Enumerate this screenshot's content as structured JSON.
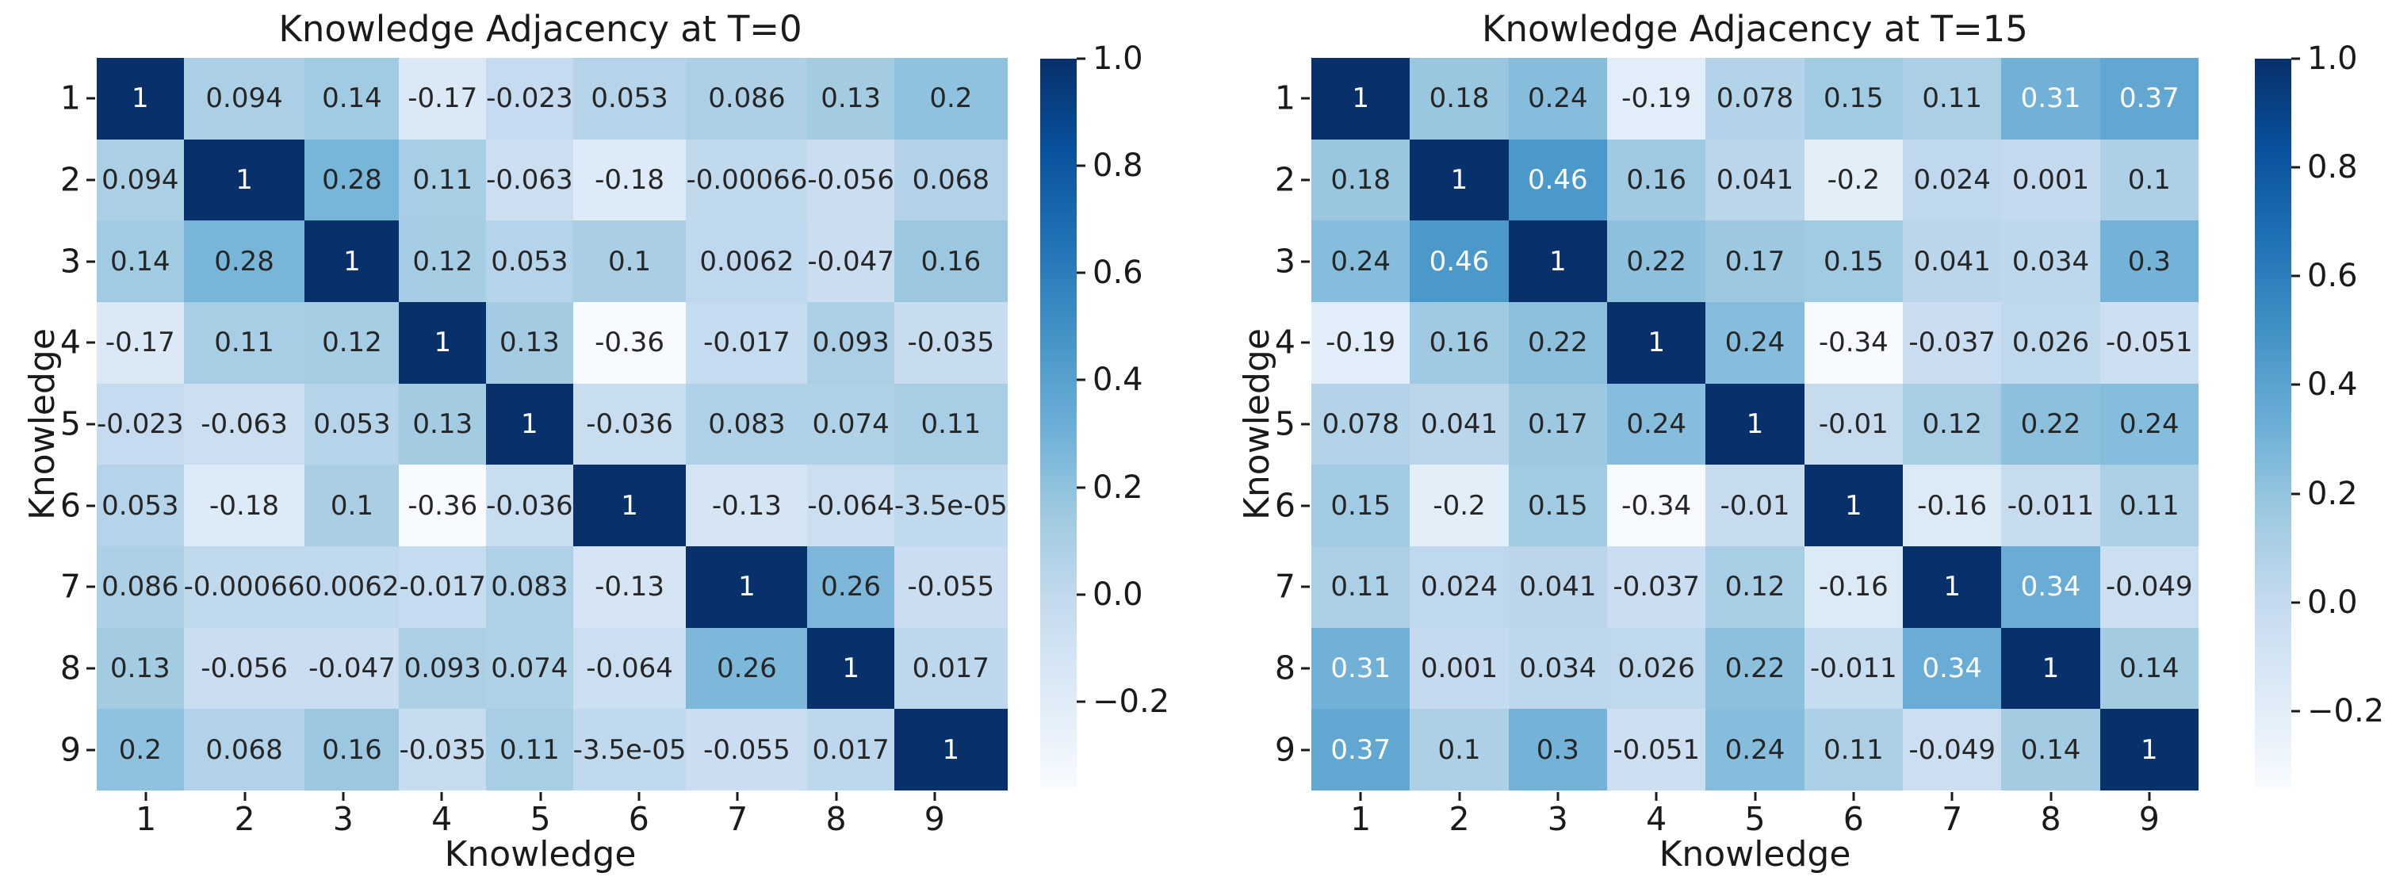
{
  "chart_data": [
    {
      "type": "heatmap",
      "title": "Knowledge Adjacency at T=0",
      "xlabel": "Knowledge",
      "ylabel": "Knowledge",
      "colormap": "Blues",
      "xticklabels": [
        "1",
        "2",
        "3",
        "4",
        "5",
        "6",
        "7",
        "8",
        "9"
      ],
      "yticklabels": [
        "1",
        "2",
        "3",
        "4",
        "5",
        "6",
        "7",
        "8",
        "9"
      ],
      "vmin": -0.36,
      "vmax": 1.0,
      "cells": [
        [
          "1",
          "0.094",
          "0.14",
          "-0.17",
          "-0.023",
          "0.053",
          "0.086",
          "0.13",
          "0.2"
        ],
        [
          "0.094",
          "1",
          "0.28",
          "0.11",
          "-0.063",
          "-0.18",
          "-0.00066",
          "-0.056",
          "0.068"
        ],
        [
          "0.14",
          "0.28",
          "1",
          "0.12",
          "0.053",
          "0.1",
          "0.0062",
          "-0.047",
          "0.16"
        ],
        [
          "-0.17",
          "0.11",
          "0.12",
          "1",
          "0.13",
          "-0.36",
          "-0.017",
          "0.093",
          "-0.035"
        ],
        [
          "-0.023",
          "-0.063",
          "0.053",
          "0.13",
          "1",
          "-0.036",
          "0.083",
          "0.074",
          "0.11"
        ],
        [
          "0.053",
          "-0.18",
          "0.1",
          "-0.36",
          "-0.036",
          "1",
          "-0.13",
          "-0.064",
          "-3.5e-05"
        ],
        [
          "0.086",
          "-0.00066",
          "0.0062",
          "-0.017",
          "0.083",
          "-0.13",
          "1",
          "0.26",
          "-0.055"
        ],
        [
          "0.13",
          "-0.056",
          "-0.047",
          "0.093",
          "0.074",
          "-0.064",
          "0.26",
          "1",
          "0.017"
        ],
        [
          "0.2",
          "0.068",
          "0.16",
          "-0.035",
          "0.11",
          "-3.5e-05",
          "-0.055",
          "0.017",
          "1"
        ]
      ],
      "colorbar": {
        "position": "right",
        "tick_labels": [
          "1.0",
          "0.8",
          "0.6",
          "0.4",
          "0.2",
          "0.0",
          "−0.2"
        ],
        "tick_values": [
          1.0,
          0.8,
          0.6,
          0.4,
          0.2,
          0.0,
          -0.2
        ]
      }
    },
    {
      "type": "heatmap",
      "title": "Knowledge Adjacency at T=15",
      "xlabel": "Knowledge",
      "ylabel": "Knowledge",
      "colormap": "Blues",
      "xticklabels": [
        "1",
        "2",
        "3",
        "4",
        "5",
        "6",
        "7",
        "8",
        "9"
      ],
      "yticklabels": [
        "1",
        "2",
        "3",
        "4",
        "5",
        "6",
        "7",
        "8",
        "9"
      ],
      "vmin": -0.34,
      "vmax": 1.0,
      "cells": [
        [
          "1",
          "0.18",
          "0.24",
          "-0.19",
          "0.078",
          "0.15",
          "0.11",
          "0.31",
          "0.37"
        ],
        [
          "0.18",
          "1",
          "0.46",
          "0.16",
          "0.041",
          "-0.2",
          "0.024",
          "0.001",
          "0.1"
        ],
        [
          "0.24",
          "0.46",
          "1",
          "0.22",
          "0.17",
          "0.15",
          "0.041",
          "0.034",
          "0.3"
        ],
        [
          "-0.19",
          "0.16",
          "0.22",
          "1",
          "0.24",
          "-0.34",
          "-0.037",
          "0.026",
          "-0.051"
        ],
        [
          "0.078",
          "0.041",
          "0.17",
          "0.24",
          "1",
          "-0.01",
          "0.12",
          "0.22",
          "0.24"
        ],
        [
          "0.15",
          "-0.2",
          "0.15",
          "-0.34",
          "-0.01",
          "1",
          "-0.16",
          "-0.011",
          "0.11"
        ],
        [
          "0.11",
          "0.024",
          "0.041",
          "-0.037",
          "0.12",
          "-0.16",
          "1",
          "0.34",
          "-0.049"
        ],
        [
          "0.31",
          "0.001",
          "0.034",
          "0.026",
          "0.22",
          "-0.011",
          "0.34",
          "1",
          "0.14"
        ],
        [
          "0.37",
          "0.1",
          "0.3",
          "-0.051",
          "0.24",
          "0.11",
          "-0.049",
          "0.14",
          "1"
        ]
      ],
      "colorbar": {
        "position": "right",
        "tick_labels": [
          "1.0",
          "0.8",
          "0.6",
          "0.4",
          "0.2",
          "0.0",
          "−0.2"
        ],
        "tick_values": [
          1.0,
          0.8,
          0.6,
          0.4,
          0.2,
          0.0,
          -0.2
        ]
      }
    }
  ],
  "colors": {
    "background": "#ffffff",
    "axis_text": "#1a1a1a",
    "annot_dark": "#262626",
    "annot_light": "#ffffff",
    "cmap_anchors": [
      "#f7fbff",
      "#deebf7",
      "#c6dbef",
      "#9ecae1",
      "#6baed6",
      "#4292c6",
      "#2171b5",
      "#08519c",
      "#08306b"
    ]
  }
}
